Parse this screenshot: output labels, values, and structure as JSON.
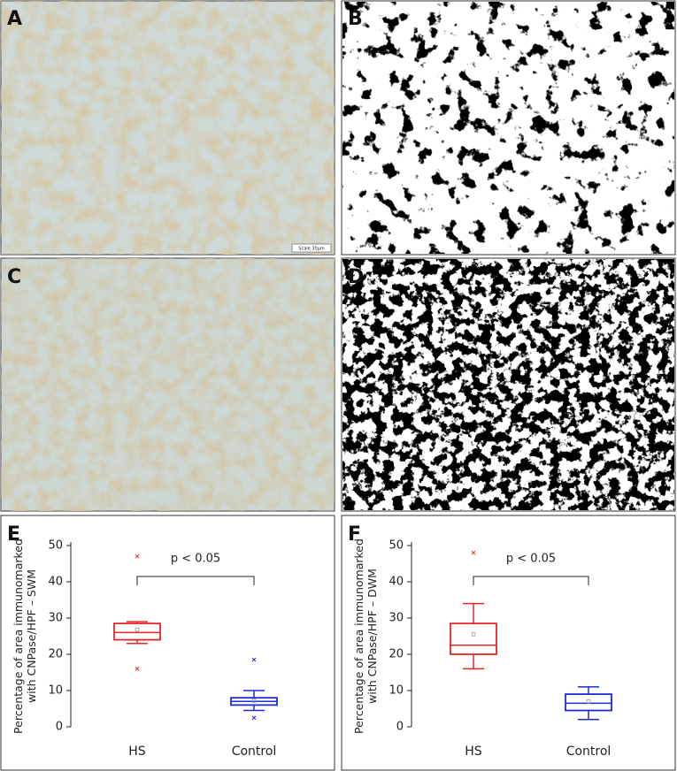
{
  "images": [
    {
      "label": "A",
      "scale_bar": "Scale 30µm"
    },
    {
      "label": "B"
    },
    {
      "label": "C"
    },
    {
      "label": "D"
    }
  ],
  "chart_data": [
    {
      "type": "box",
      "panel_label": "E",
      "y_label": [
        "Percentage of area immunomarked",
        "with CNPase/HPF – SWM"
      ],
      "annotation": "p < 0.05",
      "categories": [
        "HS",
        "Control"
      ],
      "ylim": [
        0,
        50
      ],
      "yticks": [
        0,
        10,
        20,
        30,
        40,
        50
      ],
      "series": [
        {
          "name": "HS",
          "color": "#e8262a",
          "min": 23,
          "q1": 24,
          "median": 26,
          "q3": 28.5,
          "max": 29,
          "mean": 26.8,
          "outliers": [
            47,
            16
          ]
        },
        {
          "name": "Control",
          "color": "#1f2bd0",
          "min": 4.5,
          "q1": 6,
          "median": 7,
          "q3": 8,
          "max": 10,
          "mean": 7.2,
          "outliers": [
            18.5,
            2.5
          ]
        }
      ]
    },
    {
      "type": "box",
      "panel_label": "F",
      "y_label": [
        "Percentage of area immunomarked",
        "with CNPase/HPF – DWM"
      ],
      "annotation": "p < 0.05",
      "categories": [
        "HS",
        "Control"
      ],
      "ylim": [
        0,
        50
      ],
      "yticks": [
        0,
        10,
        20,
        30,
        40,
        50
      ],
      "series": [
        {
          "name": "HS",
          "color": "#e8262a",
          "min": 16,
          "q1": 20,
          "median": 22.5,
          "q3": 28.5,
          "max": 34,
          "mean": 25.5,
          "outliers": [
            48
          ]
        },
        {
          "name": "Control",
          "color": "#1f2bd0",
          "min": 2,
          "q1": 4.5,
          "median": 6.5,
          "q3": 9,
          "max": 11,
          "mean": 7,
          "outliers": []
        }
      ]
    }
  ]
}
